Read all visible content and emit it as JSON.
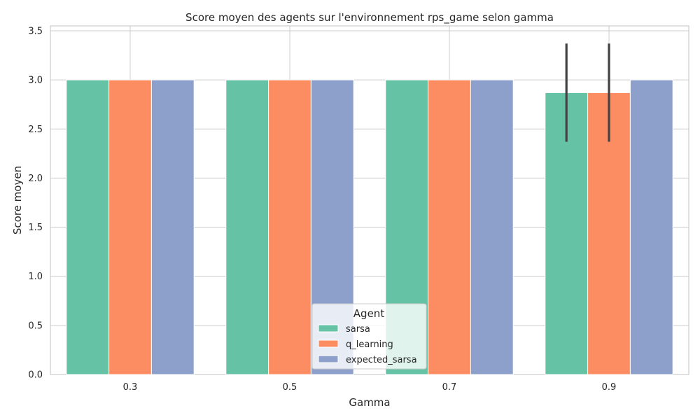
{
  "chart_data": {
    "type": "bar",
    "title": "Score moyen des agents sur l'environnement rps_game selon gamma",
    "xlabel": "Gamma",
    "ylabel": "Score moyen",
    "categories": [
      "0.3",
      "0.5",
      "0.7",
      "0.9"
    ],
    "series": [
      {
        "name": "sarsa",
        "values": [
          3.0,
          3.0,
          3.0,
          2.87
        ],
        "error_low": [
          3.0,
          3.0,
          3.0,
          2.37
        ],
        "error_high": [
          3.0,
          3.0,
          3.0,
          3.37
        ],
        "color": "#66c2a5"
      },
      {
        "name": "q_learning",
        "values": [
          3.0,
          3.0,
          3.0,
          2.87
        ],
        "error_low": [
          3.0,
          3.0,
          3.0,
          2.37
        ],
        "error_high": [
          3.0,
          3.0,
          3.0,
          3.37
        ],
        "color": "#fc8d62"
      },
      {
        "name": "expected_sarsa",
        "values": [
          3.0,
          3.0,
          3.0,
          3.0
        ],
        "error_low": [
          3.0,
          3.0,
          3.0,
          3.0
        ],
        "error_high": [
          3.0,
          3.0,
          3.0,
          3.0
        ],
        "color": "#8da0cb"
      }
    ],
    "yticks": [
      "0.0",
      "0.5",
      "1.0",
      "1.5",
      "2.0",
      "2.5",
      "3.0",
      "3.5"
    ],
    "ylim": [
      0,
      3.55
    ],
    "grid": true,
    "legend_title": "Agent",
    "legend_position": "bottom-center"
  }
}
